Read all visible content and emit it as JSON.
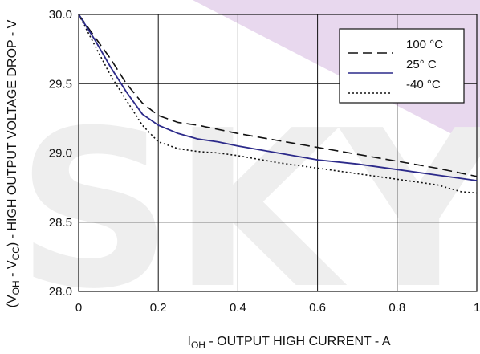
{
  "chart_data": {
    "type": "line",
    "xlabel_main": "I",
    "xlabel_sub": "OH",
    "xlabel_rest": " - OUTPUT HIGH CURRENT - A",
    "ylabel_prefix": "(V",
    "ylabel_sub1": "OH",
    "ylabel_mid": " - V",
    "ylabel_sub2": "CC",
    "ylabel_rest": ") - HIGH OUTPUT VOLTAGE DROP - V",
    "xlim": [
      0,
      1
    ],
    "ylim": [
      28.0,
      30.0
    ],
    "x_ticks": [
      0,
      0.2,
      0.4,
      0.6,
      0.8,
      1
    ],
    "x_tick_labels": [
      "0",
      "0.2",
      "0.4",
      "0.6",
      "0.8",
      "1"
    ],
    "y_ticks": [
      28.0,
      28.5,
      29.0,
      29.5,
      30.0
    ],
    "y_tick_labels": [
      "28.0",
      "28.5",
      "29.0",
      "29.5",
      "30.0"
    ],
    "grid": true,
    "legend_position": "top-right",
    "series": [
      {
        "name": "100 °C",
        "color": "#111111",
        "dash": "12 6",
        "x": [
          0,
          0.04,
          0.08,
          0.12,
          0.16,
          0.2,
          0.25,
          0.3,
          0.35,
          0.4,
          0.5,
          0.6,
          0.7,
          0.8,
          0.9,
          1.0
        ],
        "y": [
          30.0,
          29.84,
          29.68,
          29.5,
          29.36,
          29.27,
          29.22,
          29.2,
          29.17,
          29.14,
          29.09,
          29.04,
          28.99,
          28.94,
          28.89,
          28.83
        ]
      },
      {
        "name": "25° C",
        "color": "#2c2a8a",
        "dash": "",
        "x": [
          0,
          0.04,
          0.08,
          0.12,
          0.16,
          0.2,
          0.25,
          0.3,
          0.35,
          0.4,
          0.5,
          0.6,
          0.7,
          0.8,
          0.9,
          1.0
        ],
        "y": [
          30.0,
          29.82,
          29.62,
          29.44,
          29.28,
          29.2,
          29.14,
          29.1,
          29.08,
          29.05,
          29.0,
          28.95,
          28.92,
          28.88,
          28.84,
          28.8
        ]
      },
      {
        "name": "-40 °C",
        "color": "#111111",
        "dash": "2 3",
        "x": [
          0,
          0.04,
          0.08,
          0.12,
          0.16,
          0.2,
          0.25,
          0.3,
          0.35,
          0.4,
          0.5,
          0.6,
          0.7,
          0.8,
          0.9,
          0.96,
          1.0
        ],
        "y": [
          30.0,
          29.78,
          29.56,
          29.38,
          29.2,
          29.08,
          29.03,
          29.01,
          29.0,
          28.98,
          28.93,
          28.89,
          28.85,
          28.81,
          28.77,
          28.72,
          28.71
        ]
      }
    ]
  },
  "watermark": {
    "text": "SKY",
    "color": "#eeeeee",
    "corner_color": "#e8d8ee"
  }
}
